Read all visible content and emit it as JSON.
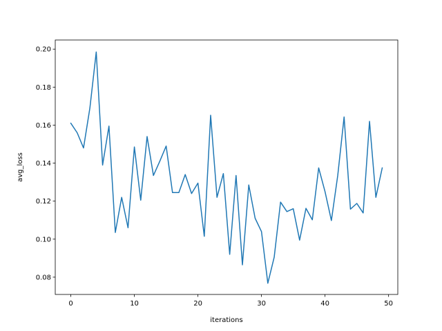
{
  "chart_data": {
    "type": "line",
    "title": "",
    "xlabel": "iterations",
    "ylabel": "avg_loss",
    "xlim": [
      -2.45,
      51.45
    ],
    "ylim": [
      0.0709,
      0.2048
    ],
    "grid": false,
    "xticks": [
      0,
      10,
      20,
      30,
      40,
      50
    ],
    "yticks": [
      0.08,
      0.1,
      0.12,
      0.14,
      0.16,
      0.18,
      0.2
    ],
    "ytick_labels": [
      "0.08",
      "0.10",
      "0.12",
      "0.14",
      "0.16",
      "0.18",
      "0.20"
    ],
    "series": [
      {
        "color": "#1f77b4",
        "x": [
          0,
          1,
          2,
          3,
          4,
          5,
          6,
          7,
          8,
          9,
          10,
          11,
          12,
          13,
          14,
          15,
          16,
          17,
          18,
          19,
          20,
          21,
          22,
          23,
          24,
          25,
          26,
          27,
          28,
          29,
          30,
          31,
          32,
          33,
          34,
          35,
          36,
          37,
          38,
          39,
          40,
          41,
          42,
          43,
          44,
          45,
          46,
          47,
          48,
          49
        ],
        "values": [
          0.161,
          0.156,
          0.148,
          0.169,
          0.1985,
          0.139,
          0.1595,
          0.1035,
          0.122,
          0.106,
          0.1485,
          0.1205,
          0.154,
          0.1335,
          0.141,
          0.149,
          0.1245,
          0.1245,
          0.134,
          0.124,
          0.1295,
          0.1015,
          0.1652,
          0.122,
          0.1345,
          0.092,
          0.1335,
          0.0865,
          0.1285,
          0.111,
          0.104,
          0.0768,
          0.0905,
          0.1195,
          0.1145,
          0.116,
          0.0995,
          0.1162,
          0.1102,
          0.1375,
          0.125,
          0.1098,
          0.1335,
          0.1643,
          0.1158,
          0.1188,
          0.1138,
          0.162,
          0.122,
          0.1375
        ]
      }
    ]
  }
}
